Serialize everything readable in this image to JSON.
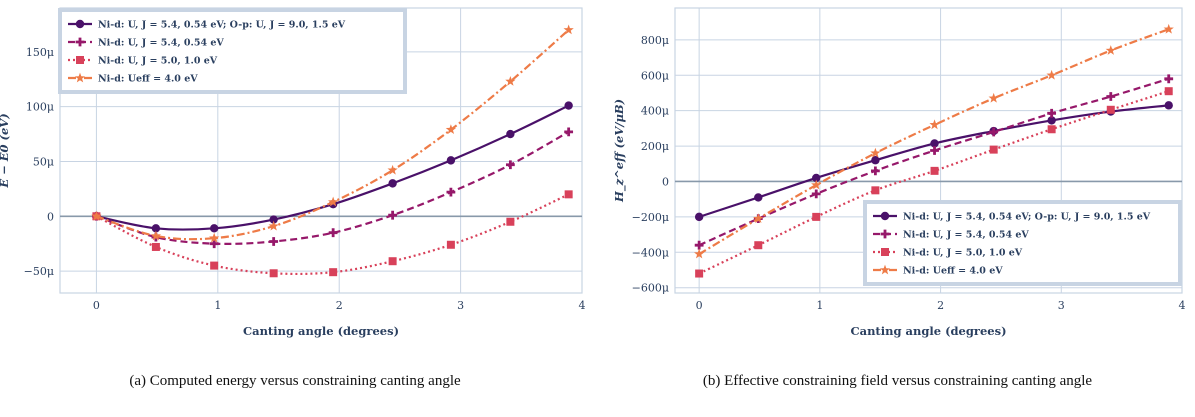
{
  "chart_data": [
    {
      "type": "line",
      "panel": "a",
      "caption": "(a) Computed energy versus constraining canting angle",
      "xlabel": "Canting angle (degrees)",
      "ylabel": "E − E0 (eV)",
      "xlim": [
        -0.3,
        4.0
      ],
      "ylim": [
        -7e-05,
        0.00019
      ],
      "xticks": [
        0,
        1,
        2,
        3,
        4
      ],
      "xtick_labels": [
        "0",
        "1",
        "2",
        "3",
        "4"
      ],
      "yticks": [
        -5e-05,
        0,
        5e-05,
        0.0001,
        0.00015
      ],
      "ytick_labels": [
        "−50μ",
        "0",
        "50μ",
        "100μ",
        "150μ"
      ],
      "grid": true,
      "legend_position": "top-left",
      "series": [
        {
          "name": "Ni-d: U, J = 5.4, 0.54 eV; O-p: U, J = 9.0, 1.5 eV",
          "color": "#4a1169",
          "dash": "solid",
          "marker": "circle",
          "x": [
            0,
            0.49,
            0.97,
            1.46,
            1.95,
            2.44,
            2.92,
            3.41,
            3.89
          ],
          "y": [
            0,
            -1.1e-05,
            -1.1e-05,
            -3e-06,
            1.1e-05,
            3e-05,
            5.1e-05,
            7.5e-05,
            0.000101
          ]
        },
        {
          "name": "Ni-d: U, J = 5.4, 0.54 eV",
          "color": "#96186a",
          "dash": "dash",
          "marker": "cross",
          "x": [
            0,
            0.49,
            0.97,
            1.46,
            1.95,
            2.44,
            2.92,
            3.41,
            3.89
          ],
          "y": [
            0,
            -1.9e-05,
            -2.5e-05,
            -2.3e-05,
            -1.5e-05,
            1e-06,
            2.2e-05,
            4.7e-05,
            7.7e-05
          ]
        },
        {
          "name": "Ni-d: U, J = 5.0, 1.0 eV",
          "color": "#d8415a",
          "dash": "dot",
          "marker": "square",
          "x": [
            0,
            0.49,
            0.97,
            1.46,
            1.95,
            2.44,
            2.92,
            3.41,
            3.89
          ],
          "y": [
            0,
            -2.8e-05,
            -4.5e-05,
            -5.2e-05,
            -5.1e-05,
            -4.1e-05,
            -2.6e-05,
            -5e-06,
            2e-05
          ]
        },
        {
          "name": "Ni-d: Ueff = 4.0 eV",
          "color": "#ee7b47",
          "dash": "dashdot",
          "marker": "star",
          "x": [
            0,
            0.49,
            0.97,
            1.46,
            1.95,
            2.44,
            2.92,
            3.41,
            3.89
          ],
          "y": [
            0,
            -1.8e-05,
            -2e-05,
            -9e-06,
            1.3e-05,
            4.2e-05,
            7.9e-05,
            0.000123,
            0.00017
          ]
        }
      ]
    },
    {
      "type": "line",
      "panel": "b",
      "caption": "(b) Effective constraining field versus constraining canting angle",
      "xlabel": "Canting angle (degrees)",
      "ylabel": "H_z^eff (eV/μB)",
      "xlim": [
        -0.2,
        4.0
      ],
      "ylim": [
        -0.00063,
        0.00098
      ],
      "xticks": [
        0,
        1,
        2,
        3,
        4
      ],
      "xtick_labels": [
        "0",
        "1",
        "2",
        "3",
        "4"
      ],
      "yticks": [
        -0.0006,
        -0.0004,
        -0.0002,
        0,
        0.0002,
        0.0004,
        0.0006,
        0.0008
      ],
      "ytick_labels": [
        "−600μ",
        "−400μ",
        "−200μ",
        "0",
        "200μ",
        "400μ",
        "600μ",
        "800μ"
      ],
      "grid": true,
      "legend_position": "bottom-right",
      "series": [
        {
          "name": "Ni-d: U, J = 5.4, 0.54 eV; O-p: U, J = 9.0, 1.5 eV",
          "color": "#4a1169",
          "dash": "solid",
          "marker": "circle",
          "x": [
            0,
            0.49,
            0.97,
            1.46,
            1.95,
            2.44,
            2.92,
            3.41,
            3.89
          ],
          "y": [
            -0.0002,
            -9e-05,
            2e-05,
            0.00012,
            0.000215,
            0.000285,
            0.000345,
            0.000395,
            0.00043
          ]
        },
        {
          "name": "Ni-d: U, J = 5.4, 0.54 eV",
          "color": "#96186a",
          "dash": "dash",
          "marker": "cross",
          "x": [
            0,
            0.49,
            0.97,
            1.46,
            1.95,
            2.44,
            2.92,
            3.41,
            3.89
          ],
          "y": [
            -0.00036,
            -0.00021,
            -7e-05,
            6e-05,
            0.000175,
            0.00028,
            0.000385,
            0.00048,
            0.00058
          ]
        },
        {
          "name": "Ni-d: U, J = 5.0, 1.0 eV",
          "color": "#d8415a",
          "dash": "dot",
          "marker": "square",
          "x": [
            0,
            0.49,
            0.97,
            1.46,
            1.95,
            2.44,
            2.92,
            3.41,
            3.89
          ],
          "y": [
            -0.00052,
            -0.00036,
            -0.0002,
            -5e-05,
            6e-05,
            0.00018,
            0.000295,
            0.000405,
            0.00051
          ]
        },
        {
          "name": "Ni-d: Ueff = 4.0 eV",
          "color": "#ee7b47",
          "dash": "dashdot",
          "marker": "star",
          "x": [
            0,
            0.49,
            0.97,
            1.46,
            1.95,
            2.44,
            2.92,
            3.41,
            3.89
          ],
          "y": [
            -0.00041,
            -0.00021,
            -2e-05,
            0.00016,
            0.00032,
            0.00047,
            0.0006,
            0.00074,
            0.00086
          ]
        }
      ]
    }
  ]
}
